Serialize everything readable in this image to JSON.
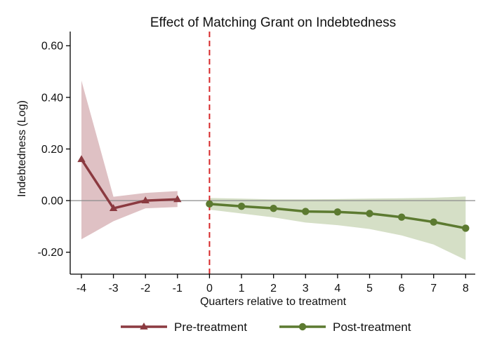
{
  "chart_data": {
    "type": "line",
    "title": "Effect of Matching Grant on Indebtedness",
    "xlabel": "Quarters relative to treatment",
    "ylabel": "Indebtedness (Log)",
    "xlim": [
      -4.35,
      8.3
    ],
    "ylim": [
      -0.285,
      0.655
    ],
    "x_ticks": [
      -4,
      -3,
      -2,
      -1,
      0,
      1,
      2,
      3,
      4,
      5,
      6,
      7,
      8
    ],
    "x_tick_labels": [
      "-4",
      "-3",
      "-2",
      "-1",
      "0",
      "1",
      "2",
      "3",
      "4",
      "5",
      "6",
      "7",
      "8"
    ],
    "y_ticks": [
      -0.2,
      0.0,
      0.2,
      0.4,
      0.6
    ],
    "y_tick_labels": [
      "-0.20",
      "0.00",
      "0.20",
      "0.40",
      "0.60"
    ],
    "reference_lines": {
      "horizontal_y": 0,
      "vertical_x": 0,
      "horizontal_color": "#8c8c8c",
      "vertical_color": "#d62728"
    },
    "grid": false,
    "legend_placement": "bottom",
    "series": [
      {
        "name": "Pre-treatment",
        "color": "#8b3a40",
        "band_color": "#dfc1c4",
        "marker": "triangle",
        "x": [
          -4,
          -3,
          -2,
          -1
        ],
        "values": [
          0.16,
          -0.03,
          0.0,
          0.005
        ],
        "ci_low": [
          -0.15,
          -0.08,
          -0.03,
          -0.025
        ],
        "ci_high": [
          0.465,
          0.015,
          0.03,
          0.037
        ]
      },
      {
        "name": "Post-treatment",
        "color": "#5c7a30",
        "band_color": "#d5dfc6",
        "marker": "circle",
        "x": [
          0,
          1,
          2,
          3,
          4,
          5,
          6,
          7,
          8
        ],
        "values": [
          -0.013,
          -0.022,
          -0.03,
          -0.042,
          -0.044,
          -0.05,
          -0.064,
          -0.083,
          -0.107
        ],
        "ci_low": [
          -0.035,
          -0.05,
          -0.065,
          -0.085,
          -0.095,
          -0.11,
          -0.135,
          -0.17,
          -0.23
        ],
        "ci_high": [
          0.01,
          0.008,
          0.005,
          0.005,
          0.006,
          0.008,
          0.009,
          0.011,
          0.016
        ]
      }
    ]
  }
}
